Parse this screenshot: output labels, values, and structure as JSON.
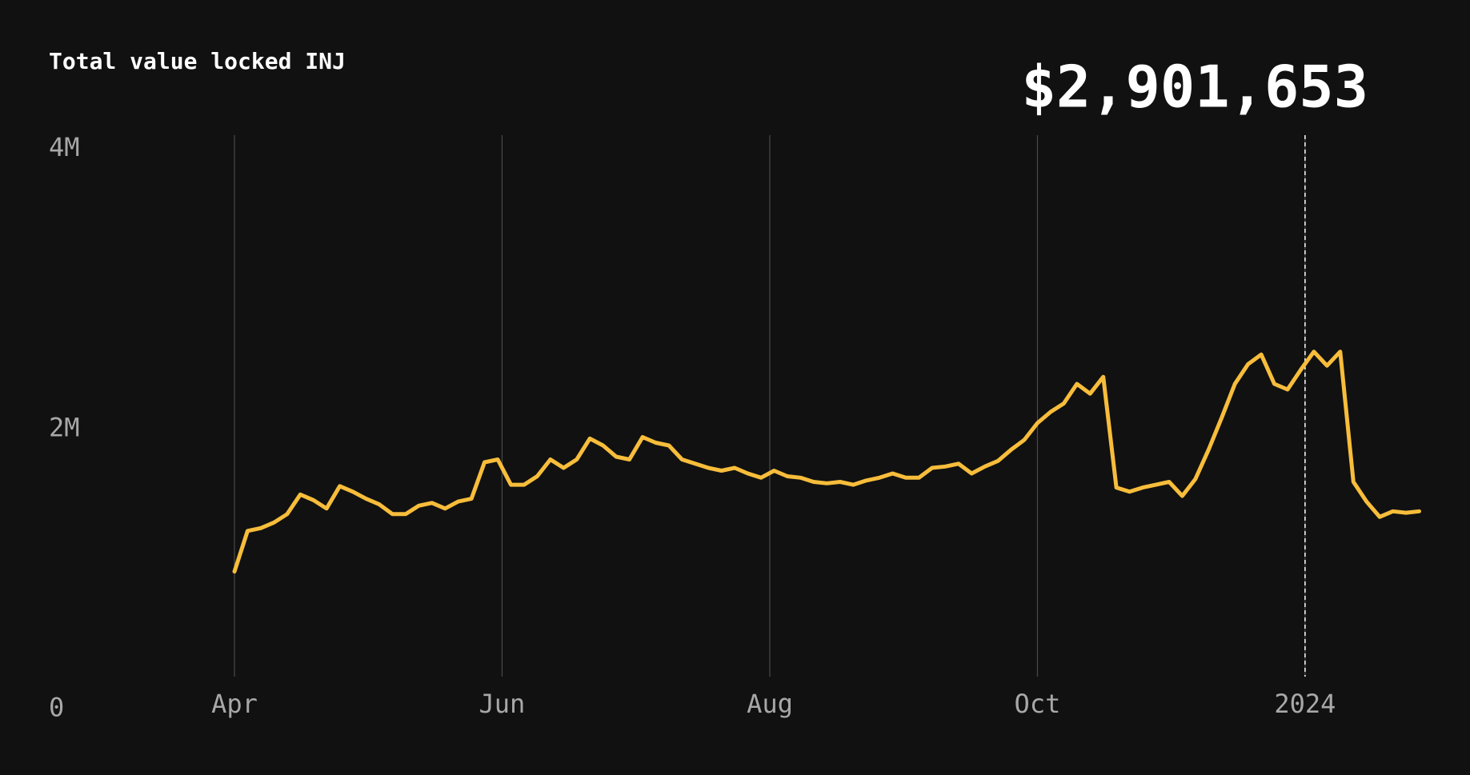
{
  "chart_data": {
    "type": "line",
    "title": "Total value locked INJ",
    "annotation": "$2,901,653",
    "series": [
      {
        "name": "TVL",
        "color": "#f7bd3b",
        "values": [
          970000,
          1260000,
          1280000,
          1320000,
          1380000,
          1520000,
          1480000,
          1420000,
          1580000,
          1540000,
          1490000,
          1450000,
          1380000,
          1380000,
          1440000,
          1460000,
          1420000,
          1470000,
          1490000,
          1750000,
          1770000,
          1590000,
          1590000,
          1650000,
          1770000,
          1710000,
          1770000,
          1920000,
          1870000,
          1790000,
          1770000,
          1930000,
          1890000,
          1870000,
          1770000,
          1740000,
          1710000,
          1690000,
          1710000,
          1670000,
          1640000,
          1690000,
          1650000,
          1640000,
          1610000,
          1600000,
          1610000,
          1590000,
          1620000,
          1640000,
          1670000,
          1640000,
          1640000,
          1710000,
          1720000,
          1740000,
          1670000,
          1720000,
          1760000,
          1840000,
          1910000,
          2030000,
          2110000,
          2170000,
          2310000,
          2240000,
          2360000,
          1570000,
          1540000,
          1570000,
          1590000,
          1610000,
          1510000,
          1630000,
          1840000,
          2070000,
          2310000,
          2450000,
          2520000,
          2310000,
          2270000,
          2410000,
          2540000,
          2440000,
          2540000,
          1610000,
          1470000,
          1360000,
          1400000,
          1390000,
          1400000
        ]
      }
    ],
    "xticks": [
      {
        "value": 0,
        "label": "Apr"
      },
      {
        "value": 20.33,
        "label": "Jun"
      },
      {
        "value": 40.67,
        "label": "Aug"
      },
      {
        "value": 61,
        "label": "Oct"
      },
      {
        "value": 81.33,
        "label": "2024"
      }
    ],
    "ylim": [
      0,
      4000000
    ],
    "yticks": [
      0,
      {
        "value": 2000000,
        "label": "2M"
      },
      {
        "value": 4000000,
        "label": "4M"
      }
    ],
    "grid": true
  }
}
